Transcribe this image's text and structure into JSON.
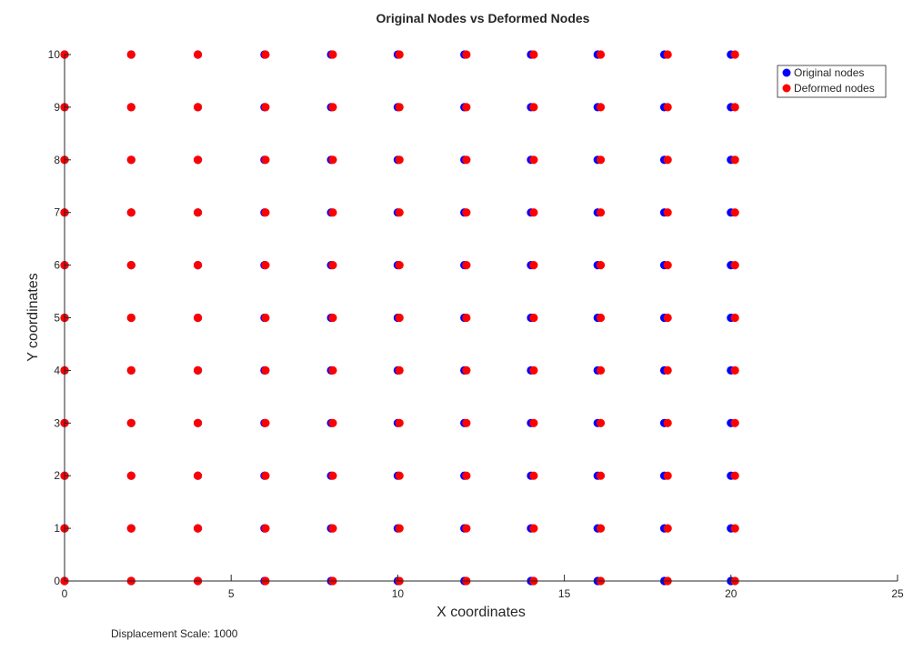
{
  "chart_data": {
    "type": "scatter",
    "title": "Original Nodes vs Deformed Nodes",
    "xlabel": "X coordinates",
    "ylabel": "Y coordinates",
    "xlim": [
      0,
      25
    ],
    "ylim": [
      0,
      10
    ],
    "xticks": [
      0,
      5,
      10,
      15,
      20,
      25
    ],
    "yticks": [
      0,
      1,
      2,
      3,
      4,
      5,
      6,
      7,
      8,
      9,
      10
    ],
    "grid": false,
    "legend_location": "top-right",
    "node_x": [
      0,
      2,
      4,
      6,
      8,
      10,
      12,
      14,
      16,
      18,
      20
    ],
    "node_y": [
      0,
      1,
      2,
      3,
      4,
      5,
      6,
      7,
      8,
      9,
      10
    ],
    "x_displacement_shown": [
      0,
      0,
      0,
      0.03,
      0.05,
      0.05,
      0.06,
      0.08,
      0.09,
      0.1,
      0.12
    ],
    "series": [
      {
        "name": "Original nodes",
        "color": "#0000ff",
        "marker": "circle"
      },
      {
        "name": "Deformed nodes",
        "color": "#ff0000",
        "marker": "circle"
      }
    ],
    "annotation": "Displacement Scale: 1000"
  }
}
